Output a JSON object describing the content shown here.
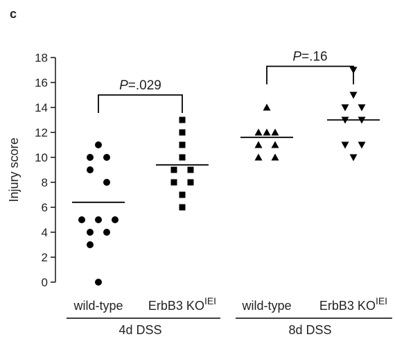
{
  "chart_data": {
    "type": "scatter",
    "panel_label": "c",
    "ylabel": "Injury score",
    "ylim": [
      0,
      18
    ],
    "yticks": [
      0,
      2,
      4,
      6,
      8,
      10,
      12,
      14,
      16,
      18
    ],
    "grid": false,
    "categories": [
      {
        "main": "wild-type",
        "sup": ""
      },
      {
        "main": "ErbB3 KO",
        "sup": "IEI"
      },
      {
        "main": "wild-type",
        "sup": ""
      },
      {
        "main": "ErbB3 KO",
        "sup": "IEI"
      }
    ],
    "groups": [
      {
        "label": "4d DSS",
        "categories": [
          0,
          1
        ]
      },
      {
        "label": "8d DSS",
        "categories": [
          2,
          3
        ]
      }
    ],
    "series": [
      {
        "category": 0,
        "marker": "circle",
        "mean": 6.4,
        "points": [
          [
            0,
            11
          ],
          [
            -1,
            10
          ],
          [
            1,
            10
          ],
          [
            -1,
            9
          ],
          [
            1,
            8
          ],
          [
            -2,
            5
          ],
          [
            0,
            5
          ],
          [
            2,
            5
          ],
          [
            -1,
            4
          ],
          [
            1,
            4
          ],
          [
            -1,
            3
          ],
          [
            0,
            0
          ]
        ]
      },
      {
        "category": 1,
        "marker": "square",
        "mean": 9.4,
        "points": [
          [
            0,
            13
          ],
          [
            0,
            12
          ],
          [
            0,
            11
          ],
          [
            0,
            10
          ],
          [
            -1,
            9
          ],
          [
            1,
            9
          ],
          [
            -1,
            8
          ],
          [
            1,
            8
          ],
          [
            0,
            7
          ],
          [
            0,
            6
          ]
        ]
      },
      {
        "category": 2,
        "marker": "triangle-up",
        "mean": 11.6,
        "points": [
          [
            0,
            14
          ],
          [
            -1,
            12
          ],
          [
            0,
            12
          ],
          [
            1,
            12
          ],
          [
            -1,
            11
          ],
          [
            1,
            11
          ],
          [
            -1,
            10
          ],
          [
            1,
            10
          ]
        ]
      },
      {
        "category": 3,
        "marker": "triangle-down",
        "mean": 13,
        "points": [
          [
            0,
            17
          ],
          [
            0,
            15
          ],
          [
            -1,
            14
          ],
          [
            1,
            14
          ],
          [
            -1,
            13
          ],
          [
            1,
            13
          ],
          [
            -1,
            11
          ],
          [
            1,
            11
          ],
          [
            0,
            10
          ]
        ]
      }
    ],
    "annotations": [
      {
        "from": 0,
        "to": 1,
        "level": 15,
        "p_italic": "P",
        "p_rest": "=.029"
      },
      {
        "from": 2,
        "to": 3,
        "level": 17.3,
        "p_italic": "P",
        "p_rest": "=.16"
      }
    ]
  }
}
